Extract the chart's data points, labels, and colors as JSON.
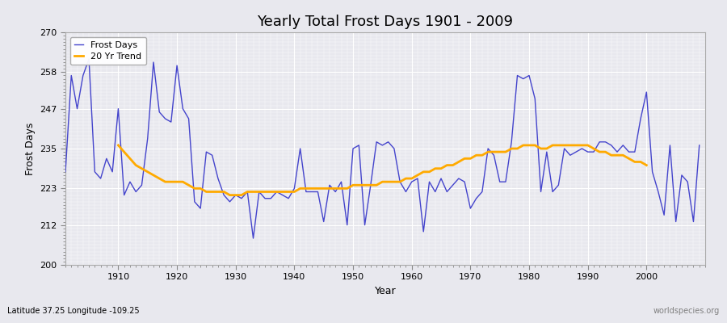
{
  "title": "Yearly Total Frost Days 1901 - 2009",
  "xlabel": "Year",
  "ylabel": "Frost Days",
  "subtitle": "Latitude 37.25 Longitude -109.25",
  "watermark": "worldspecies.org",
  "ylim": [
    200,
    270
  ],
  "yticks": [
    200,
    212,
    223,
    235,
    247,
    258,
    270
  ],
  "xlim": [
    1901,
    2010
  ],
  "xticks": [
    1910,
    1920,
    1930,
    1940,
    1950,
    1960,
    1970,
    1980,
    1990,
    2000
  ],
  "bg_color": "#e8e8ee",
  "line_color": "#4444cc",
  "trend_color": "#ffaa00",
  "years": [
    1901,
    1902,
    1903,
    1904,
    1905,
    1906,
    1907,
    1908,
    1909,
    1910,
    1911,
    1912,
    1913,
    1914,
    1915,
    1916,
    1917,
    1918,
    1919,
    1920,
    1921,
    1922,
    1923,
    1924,
    1925,
    1926,
    1927,
    1928,
    1929,
    1930,
    1931,
    1932,
    1933,
    1934,
    1935,
    1936,
    1937,
    1938,
    1939,
    1940,
    1941,
    1942,
    1943,
    1944,
    1945,
    1946,
    1947,
    1948,
    1949,
    1950,
    1951,
    1952,
    1953,
    1954,
    1955,
    1956,
    1957,
    1958,
    1959,
    1960,
    1961,
    1962,
    1963,
    1964,
    1965,
    1966,
    1967,
    1968,
    1969,
    1970,
    1971,
    1972,
    1973,
    1974,
    1975,
    1976,
    1977,
    1978,
    1979,
    1980,
    1981,
    1982,
    1983,
    1984,
    1985,
    1986,
    1987,
    1988,
    1989,
    1990,
    1991,
    1992,
    1993,
    1994,
    1995,
    1996,
    1997,
    1998,
    1999,
    2000,
    2001,
    2002,
    2003,
    2004,
    2005,
    2006,
    2007,
    2008,
    2009
  ],
  "frost_days": [
    228,
    257,
    247,
    257,
    262,
    228,
    226,
    232,
    228,
    247,
    221,
    225,
    222,
    224,
    238,
    261,
    246,
    244,
    243,
    260,
    247,
    244,
    219,
    217,
    234,
    233,
    226,
    221,
    219,
    221,
    220,
    222,
    208,
    222,
    220,
    220,
    222,
    221,
    220,
    223,
    235,
    222,
    222,
    222,
    213,
    224,
    222,
    225,
    212,
    235,
    236,
    212,
    224,
    237,
    236,
    237,
    235,
    225,
    222,
    225,
    226,
    210,
    225,
    222,
    226,
    222,
    224,
    226,
    225,
    217,
    220,
    222,
    235,
    233,
    225,
    225,
    237,
    257,
    256,
    257,
    250,
    222,
    234,
    222,
    224,
    235,
    233,
    234,
    235,
    234,
    234,
    237,
    237,
    236,
    234,
    236,
    234,
    234,
    244,
    252,
    228,
    222,
    215,
    236,
    213,
    227,
    225,
    213,
    236
  ],
  "trend_start_year": 1910,
  "trend_values": [
    236,
    234,
    232,
    230,
    229,
    228,
    227,
    226,
    225,
    225,
    225,
    225,
    224,
    223,
    223,
    222,
    222,
    222,
    222,
    221,
    221,
    221,
    222,
    222,
    222,
    222,
    222,
    222,
    222,
    222,
    222,
    223,
    223,
    223,
    223,
    223,
    223,
    223,
    223,
    223,
    224,
    224,
    224,
    224,
    224,
    225,
    225,
    225,
    225,
    226,
    226,
    227,
    228,
    228,
    229,
    229,
    230,
    230,
    231,
    232,
    232,
    233,
    233,
    234,
    234,
    234,
    234,
    235,
    235,
    236,
    236,
    236,
    235,
    235,
    236,
    236,
    236,
    236,
    236,
    236,
    236,
    235,
    234,
    234,
    233,
    233,
    233,
    232,
    231,
    231,
    230
  ]
}
